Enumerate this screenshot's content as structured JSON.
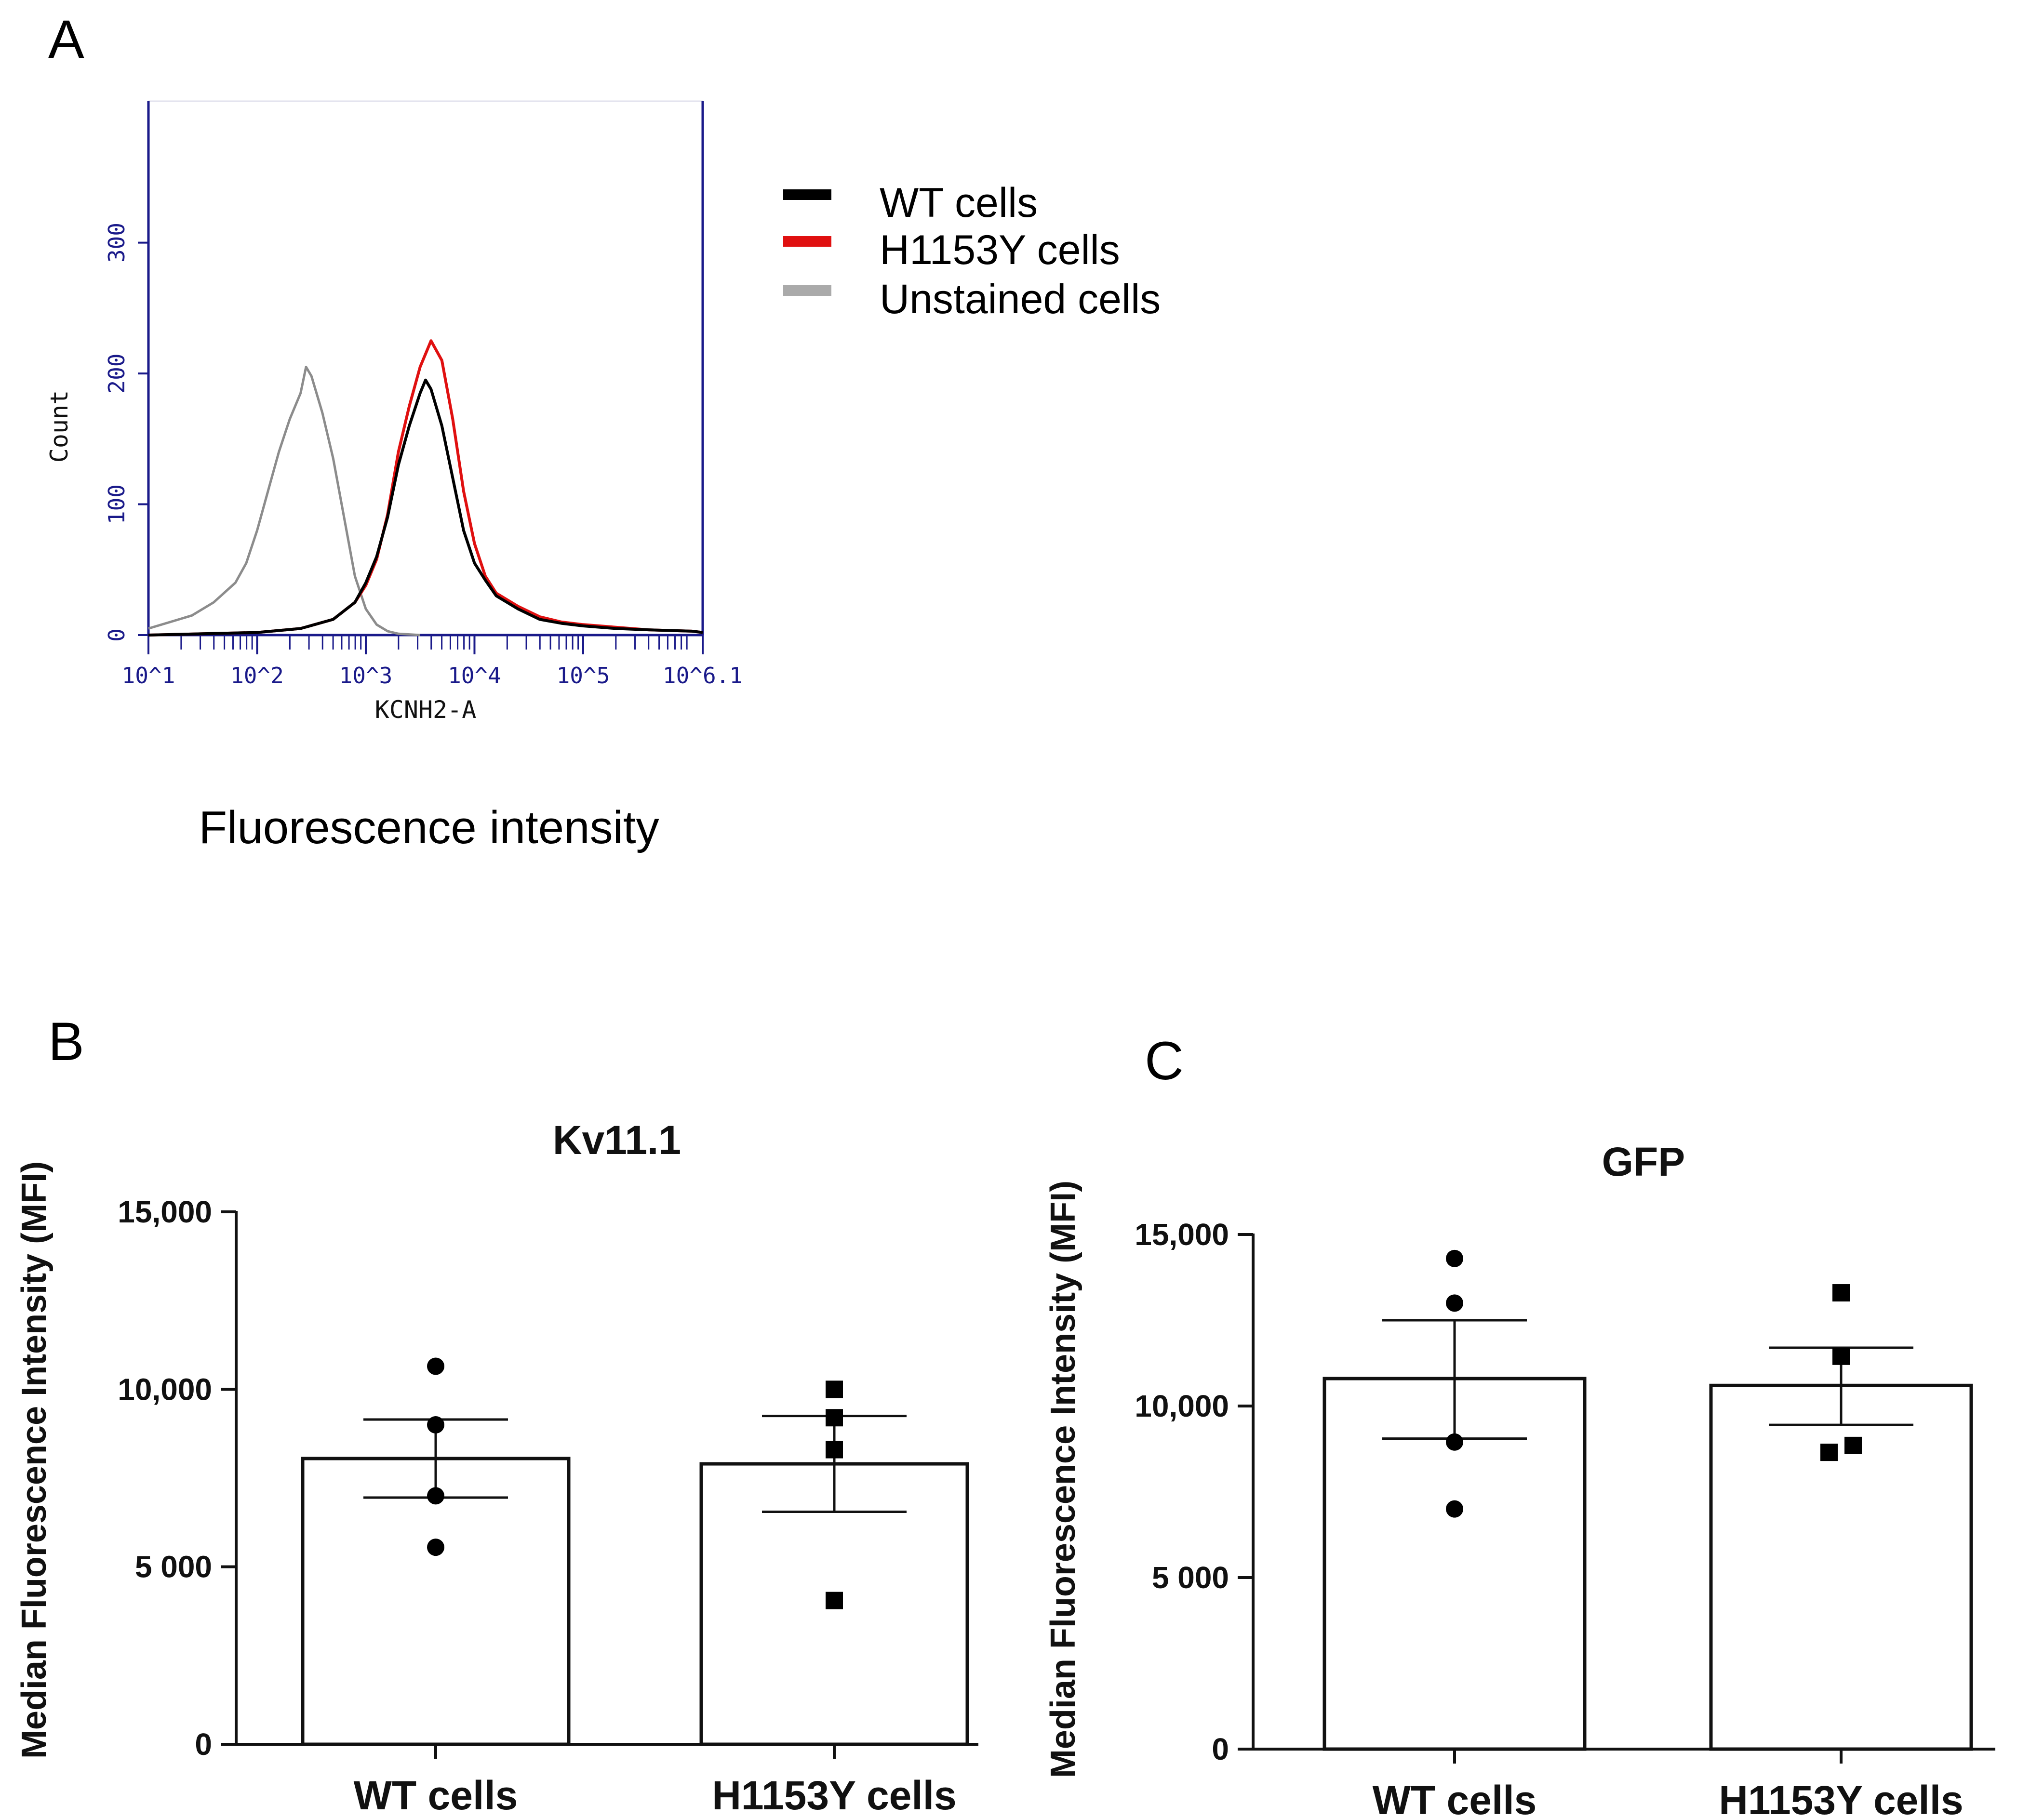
{
  "chart_data": [
    {
      "panel": "A",
      "type": "line",
      "title": "",
      "xlabel": "KCNH2-A",
      "ylabel": "Count",
      "caption": "Fluorescence intensity",
      "xscale": "log",
      "xlim": [
        1,
        6.1
      ],
      "ylim": [
        0,
        400
      ],
      "ytick_labels": [
        "0",
        "100",
        "200",
        "300"
      ],
      "yticks": [
        0,
        100,
        200,
        300
      ],
      "xtick_labels": [
        "10^1",
        "10^2",
        "10^3",
        "10^4",
        "10^5",
        "10^6.1"
      ],
      "xticks": [
        1,
        2,
        3,
        4,
        5,
        6.1
      ],
      "legend_position": "right",
      "series": [
        {
          "name": "WT cells",
          "color": "#000000",
          "points": [
            [
              1.0,
              0
            ],
            [
              1.5,
              1
            ],
            [
              2.0,
              2
            ],
            [
              2.4,
              5
            ],
            [
              2.7,
              12
            ],
            [
              2.9,
              25
            ],
            [
              3.0,
              40
            ],
            [
              3.1,
              60
            ],
            [
              3.2,
              90
            ],
            [
              3.3,
              130
            ],
            [
              3.4,
              160
            ],
            [
              3.5,
              185
            ],
            [
              3.55,
              195
            ],
            [
              3.6,
              188
            ],
            [
              3.7,
              160
            ],
            [
              3.8,
              120
            ],
            [
              3.9,
              80
            ],
            [
              4.0,
              55
            ],
            [
              4.1,
              42
            ],
            [
              4.2,
              30
            ],
            [
              4.4,
              20
            ],
            [
              4.6,
              12
            ],
            [
              4.8,
              9
            ],
            [
              5.0,
              7
            ],
            [
              5.3,
              5
            ],
            [
              5.6,
              4
            ],
            [
              6.0,
              3
            ],
            [
              6.1,
              2
            ]
          ]
        },
        {
          "name": "H1153Y cells",
          "color": "#e01010",
          "points": [
            [
              1.0,
              0
            ],
            [
              1.5,
              1
            ],
            [
              2.0,
              2
            ],
            [
              2.4,
              5
            ],
            [
              2.7,
              12
            ],
            [
              2.9,
              25
            ],
            [
              3.0,
              38
            ],
            [
              3.1,
              58
            ],
            [
              3.2,
              92
            ],
            [
              3.3,
              140
            ],
            [
              3.4,
              175
            ],
            [
              3.5,
              205
            ],
            [
              3.6,
              225
            ],
            [
              3.7,
              210
            ],
            [
              3.8,
              165
            ],
            [
              3.9,
              110
            ],
            [
              4.0,
              70
            ],
            [
              4.1,
              45
            ],
            [
              4.2,
              32
            ],
            [
              4.4,
              22
            ],
            [
              4.6,
              14
            ],
            [
              4.8,
              10
            ],
            [
              5.0,
              8
            ],
            [
              5.3,
              6
            ],
            [
              5.6,
              4
            ],
            [
              6.0,
              3
            ],
            [
              6.1,
              2
            ]
          ]
        },
        {
          "name": "Unstained cells",
          "color": "#8c8c8c",
          "points": [
            [
              1.0,
              5
            ],
            [
              1.2,
              10
            ],
            [
              1.4,
              15
            ],
            [
              1.6,
              25
            ],
            [
              1.8,
              40
            ],
            [
              1.9,
              55
            ],
            [
              2.0,
              80
            ],
            [
              2.1,
              110
            ],
            [
              2.2,
              140
            ],
            [
              2.3,
              165
            ],
            [
              2.4,
              185
            ],
            [
              2.45,
              205
            ],
            [
              2.5,
              198
            ],
            [
              2.6,
              170
            ],
            [
              2.7,
              135
            ],
            [
              2.8,
              90
            ],
            [
              2.9,
              45
            ],
            [
              3.0,
              20
            ],
            [
              3.1,
              8
            ],
            [
              3.2,
              3
            ],
            [
              3.3,
              1
            ],
            [
              3.5,
              0
            ]
          ]
        }
      ]
    },
    {
      "panel": "B",
      "type": "bar",
      "title": "Kv11.1",
      "xlabel": "",
      "ylabel": "Median Fluorescence Intensity (MFI)",
      "ylim": [
        0,
        15000
      ],
      "yticks": [
        0,
        5000,
        10000,
        15000
      ],
      "ytick_labels": [
        "0",
        "5 000",
        "10,000",
        "15,000"
      ],
      "categories": [
        "WT cells",
        "H1153Y cells"
      ],
      "values": [
        8050,
        7900
      ],
      "error_low": [
        6950,
        6550
      ],
      "error_high": [
        9150,
        9250
      ],
      "points": [
        [
          10650,
          9000,
          7000,
          5550
        ],
        [
          10000,
          9200,
          8300,
          4050
        ]
      ],
      "markers": [
        "circle",
        "square"
      ]
    },
    {
      "panel": "C",
      "type": "bar",
      "title": "GFP",
      "xlabel": "",
      "ylabel": "Median Fluorescence Intensity (MFI)",
      "ylim": [
        0,
        15000
      ],
      "yticks": [
        0,
        5000,
        10000,
        15000
      ],
      "ytick_labels": [
        "0",
        "5 000",
        "10,000",
        "15,000"
      ],
      "categories": [
        "WT cells",
        "H1153Y cells"
      ],
      "values": [
        10800,
        10600
      ],
      "error_low": [
        9050,
        9450
      ],
      "error_high": [
        12500,
        11700
      ],
      "points": [
        [
          14300,
          13000,
          8950,
          7000
        ],
        [
          13300,
          11450,
          8850,
          8650
        ]
      ],
      "markers": [
        "circle",
        "square"
      ]
    }
  ],
  "panel_labels": [
    "A",
    "B",
    "C"
  ],
  "legend_items": [
    "WT cells",
    "H1153Y cells",
    "Unstained cells"
  ]
}
